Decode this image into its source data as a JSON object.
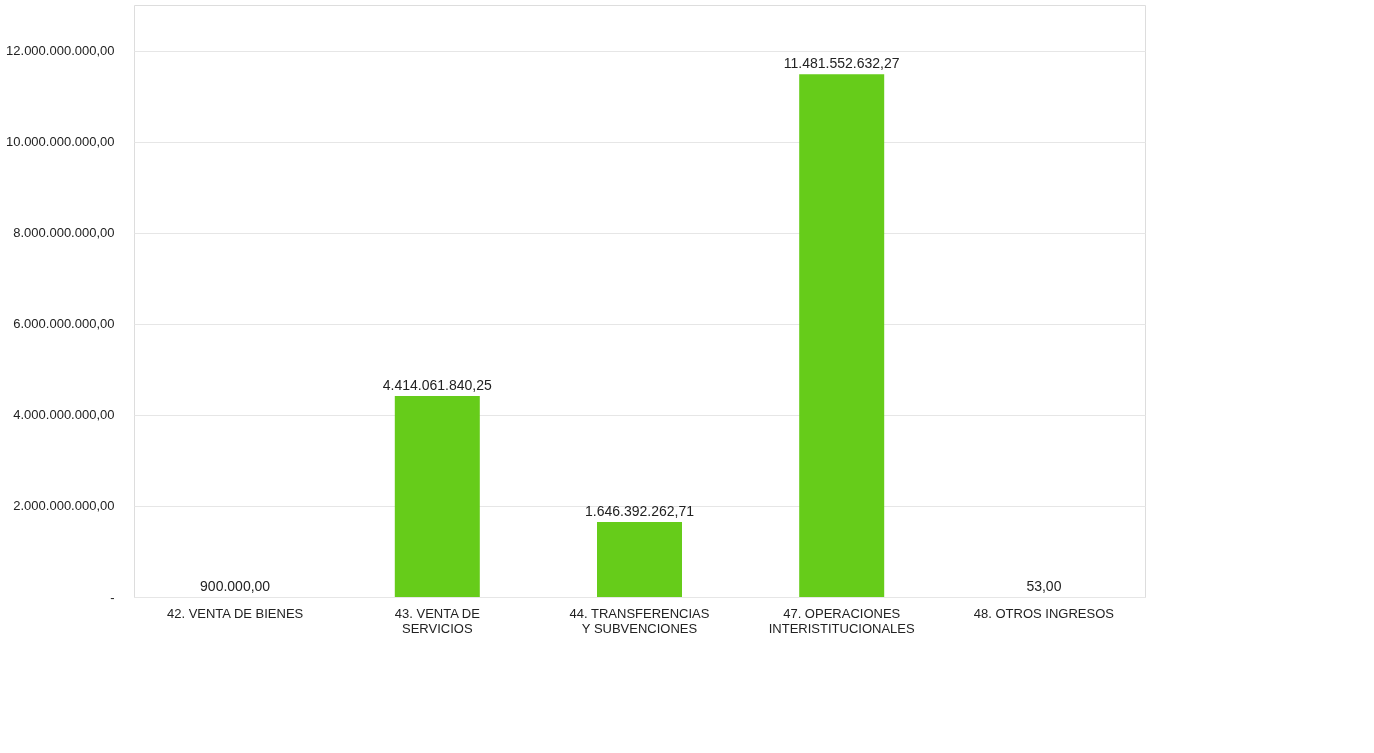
{
  "chart_data": {
    "type": "bar",
    "categories": [
      "42. VENTA DE BIENES",
      "43. VENTA DE\nSERVICIOS",
      "44. TRANSFERENCIAS\nY SUBVENCIONES",
      "47. OPERACIONES\nINTERISTITUCIONALES",
      "48. OTROS INGRESOS"
    ],
    "values": [
      900000,
      4414061840.25,
      1646392262.71,
      11481552632.27,
      53
    ],
    "value_labels": [
      "900.000,00",
      "4.414.061.840,25",
      "1.646.392.262,71",
      "11.481.552.632,27",
      "53,00"
    ],
    "color": "#66cc1a",
    "ylim": [
      0,
      13000000000
    ],
    "yticks": [
      {
        "value": 0,
        "label": "-"
      },
      {
        "value": 2000000000,
        "label": "2.000.000.000,00"
      },
      {
        "value": 4000000000,
        "label": "4.000.000.000,00"
      },
      {
        "value": 6000000000,
        "label": "6.000.000.000,00"
      },
      {
        "value": 8000000000,
        "label": "8.000.000.000,00"
      },
      {
        "value": 10000000000,
        "label": "10.000.000.000,00"
      },
      {
        "value": 12000000000,
        "label": "12.000.000.000,00"
      }
    ],
    "grid": "y"
  }
}
